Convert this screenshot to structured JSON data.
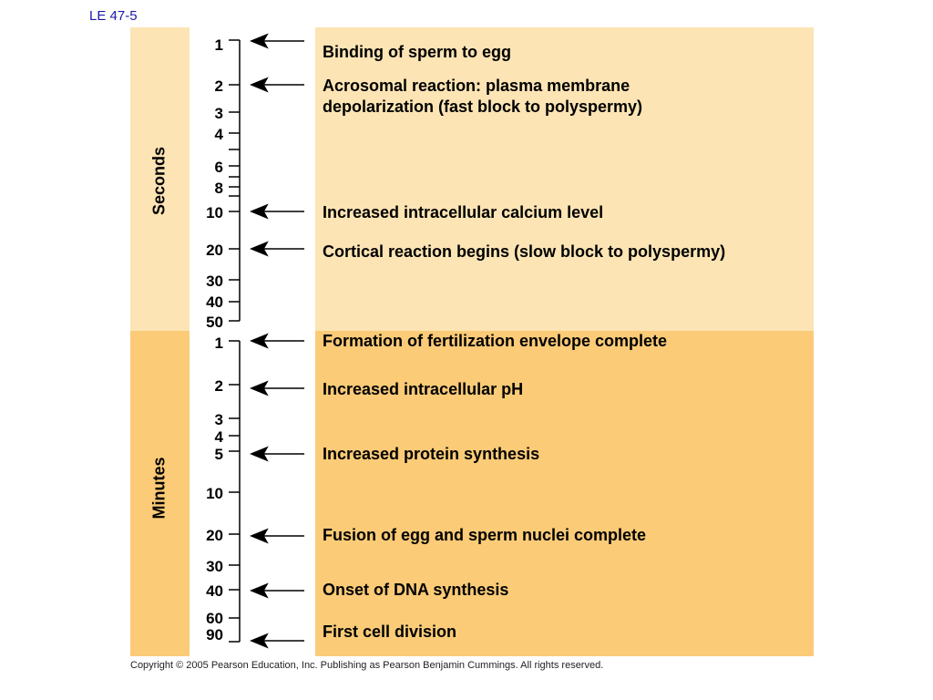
{
  "slide_label": "LE 47-5",
  "bands": {
    "seconds_label": "Seconds",
    "minutes_label": "Minutes"
  },
  "colors": {
    "seconds_band": "#fce4b4",
    "minutes_band": "#fbcb77",
    "slide_label": "#1a1aa6"
  },
  "ticks": {
    "seconds": [
      "1",
      "2",
      "3",
      "4",
      "6",
      "8",
      "10",
      "20",
      "30",
      "40",
      "50"
    ],
    "minutes": [
      "1",
      "2",
      "3",
      "4",
      "5",
      "10",
      "20",
      "30",
      "40",
      "60",
      "90"
    ]
  },
  "events": [
    "Binding of sperm to egg",
    "Acrosomal reaction: plasma membrane",
    "depolarization (fast block to polyspermy)",
    "Increased intracellular calcium level",
    "Cortical reaction begins (slow block to polyspermy)",
    "Formation of fertilization envelope complete",
    "Increased intracellular pH",
    "Increased protein synthesis",
    "Fusion of egg and sperm nuclei complete",
    "Onset of DNA synthesis",
    "First cell division"
  ],
  "copyright": "Copyright ©  2005 Pearson Education, Inc. Publishing as Pearson Benjamin Cummings. All rights reserved."
}
